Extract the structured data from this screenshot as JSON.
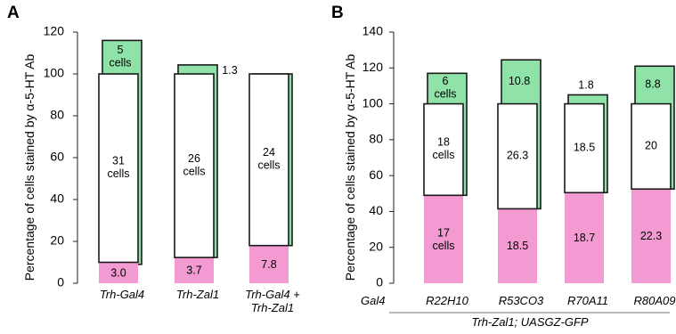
{
  "chart_data": [
    {
      "panel": "A",
      "type": "bar",
      "stacked": true,
      "ylabel": "Percentage of cells stained by α-5-HT Ab",
      "ylim": [
        0,
        120
      ],
      "yticks": [
        "0",
        "20",
        "40",
        "60",
        "80",
        "100",
        "120"
      ],
      "categories": [
        "Trh-Gal4",
        "Trh-Zal1",
        "Trh-Gal4 +\nTrh-Zal1"
      ],
      "colors": {
        "pink": "#f29ad1",
        "white": "#ffffff",
        "green": "#8fe3a8"
      },
      "bars": [
        {
          "pink": {
            "value": 10,
            "label": "3.0"
          },
          "white": {
            "value": 90,
            "label": "31\ncells"
          },
          "green": {
            "start": 9,
            "end": 116,
            "label": "5\ncells",
            "label_pos": "inside"
          }
        },
        {
          "pink": {
            "value": 12.3,
            "label": "3.7"
          },
          "white": {
            "value": 87.7,
            "label": "26\ncells"
          },
          "green": {
            "start": 12.3,
            "end": 104.3,
            "label": "1.3",
            "label_pos": "right"
          }
        },
        {
          "pink": {
            "value": 18,
            "label": "7.8"
          },
          "white": {
            "value": 82,
            "label": "24\ncells"
          },
          "green": {
            "start": 18,
            "end": 100,
            "label": "",
            "label_pos": "inside"
          }
        }
      ]
    },
    {
      "panel": "B",
      "type": "bar",
      "stacked": true,
      "ylabel": "Percentage of cells stained by α-5-HT Ab",
      "ylim": [
        0,
        140
      ],
      "yticks": [
        "0",
        "20",
        "40",
        "60",
        "80",
        "100",
        "120",
        "140"
      ],
      "row_label": "Gal4",
      "categories": [
        "R22H10",
        "R53CO3",
        "R70A11",
        "R80A09"
      ],
      "footer": "Trh-Zal1; UASGZ-GFP",
      "colors": {
        "pink": "#f29ad1",
        "white": "#ffffff",
        "green": "#8fe3a8"
      },
      "bars": [
        {
          "pink": {
            "value": 49,
            "label": "17\ncells"
          },
          "white": {
            "value": 51,
            "label": "18\ncells"
          },
          "green": {
            "start": 49,
            "end": 117,
            "label": "6\ncells",
            "label_pos": "inside"
          }
        },
        {
          "pink": {
            "value": 41.5,
            "label": "18.5"
          },
          "white": {
            "value": 58.5,
            "label": "26.3"
          },
          "green": {
            "start": 41.5,
            "end": 124.5,
            "label": "10.8",
            "label_pos": "inside"
          }
        },
        {
          "pink": {
            "value": 50.5,
            "label": "18.7"
          },
          "white": {
            "value": 49.5,
            "label": "18.5"
          },
          "green": {
            "start": 50.5,
            "end": 105,
            "label": "1.8",
            "label_pos": "above"
          }
        },
        {
          "pink": {
            "value": 52.5,
            "label": "22.3"
          },
          "white": {
            "value": 47.5,
            "label": "20"
          },
          "green": {
            "start": 52.5,
            "end": 121,
            "label": "8.8",
            "label_pos": "inside"
          }
        }
      ]
    }
  ]
}
